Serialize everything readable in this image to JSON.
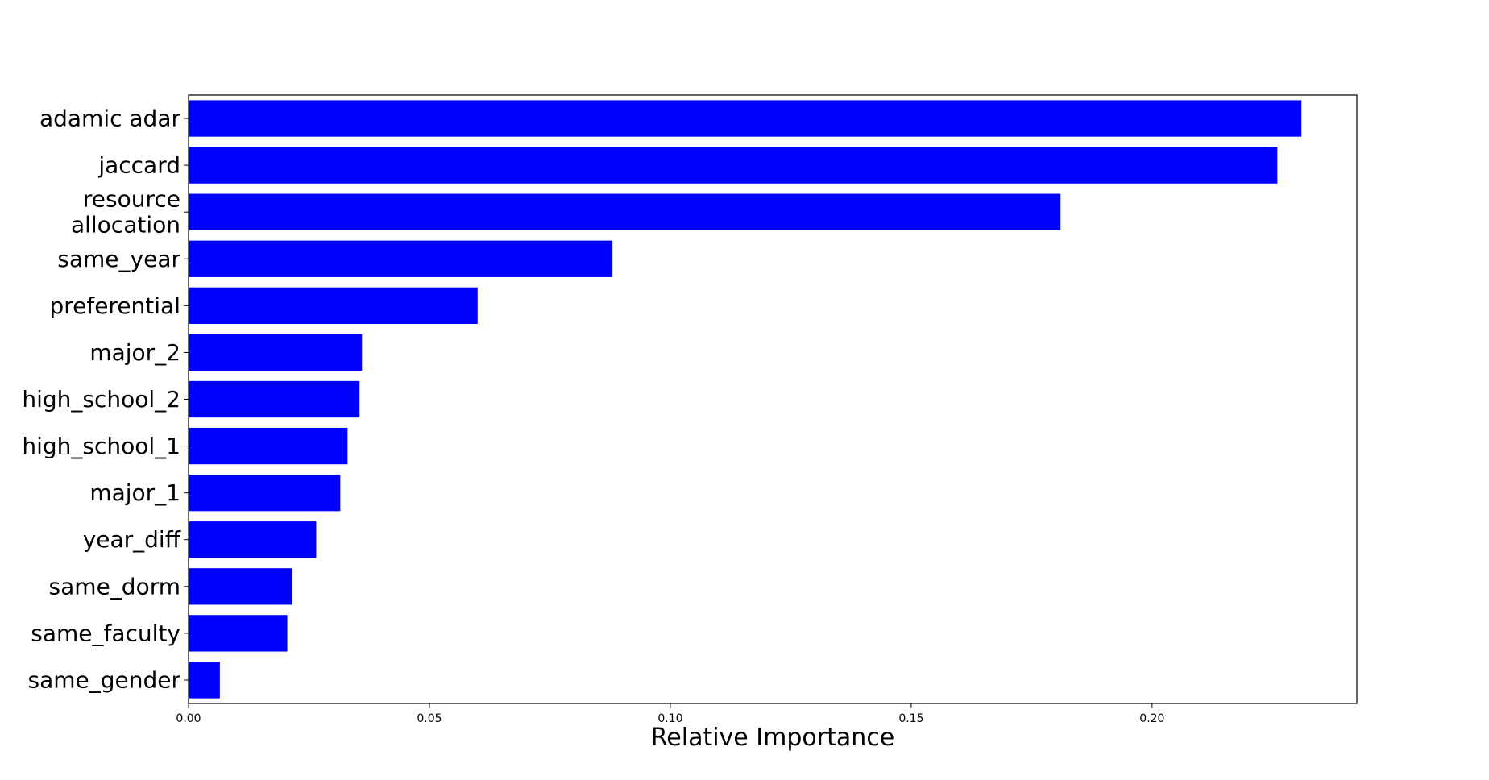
{
  "chart_data": {
    "type": "bar",
    "orientation": "horizontal",
    "categories": [
      "adamic adar",
      "jaccard",
      "resource\nallocation",
      "same_year",
      "preferential",
      "major_2",
      "high_school_2",
      "high_school_1",
      "major_1",
      "year_diff",
      "same_dorm",
      "same_faculty",
      "same_gender"
    ],
    "values": [
      0.231,
      0.226,
      0.181,
      0.088,
      0.06,
      0.036,
      0.0355,
      0.033,
      0.0315,
      0.0265,
      0.0215,
      0.0205,
      0.0065
    ],
    "bar_color": "#0000ff",
    "title": "",
    "xlabel": "Relative Importance",
    "ylabel": "",
    "xlim": [
      0,
      0.2425
    ],
    "xticks": [
      0.0,
      0.05,
      0.1,
      0.15,
      0.2
    ],
    "xtick_labels": [
      "0.00",
      "0.05",
      "0.10",
      "0.15",
      "0.20"
    ],
    "grid": false,
    "legend": "none"
  }
}
